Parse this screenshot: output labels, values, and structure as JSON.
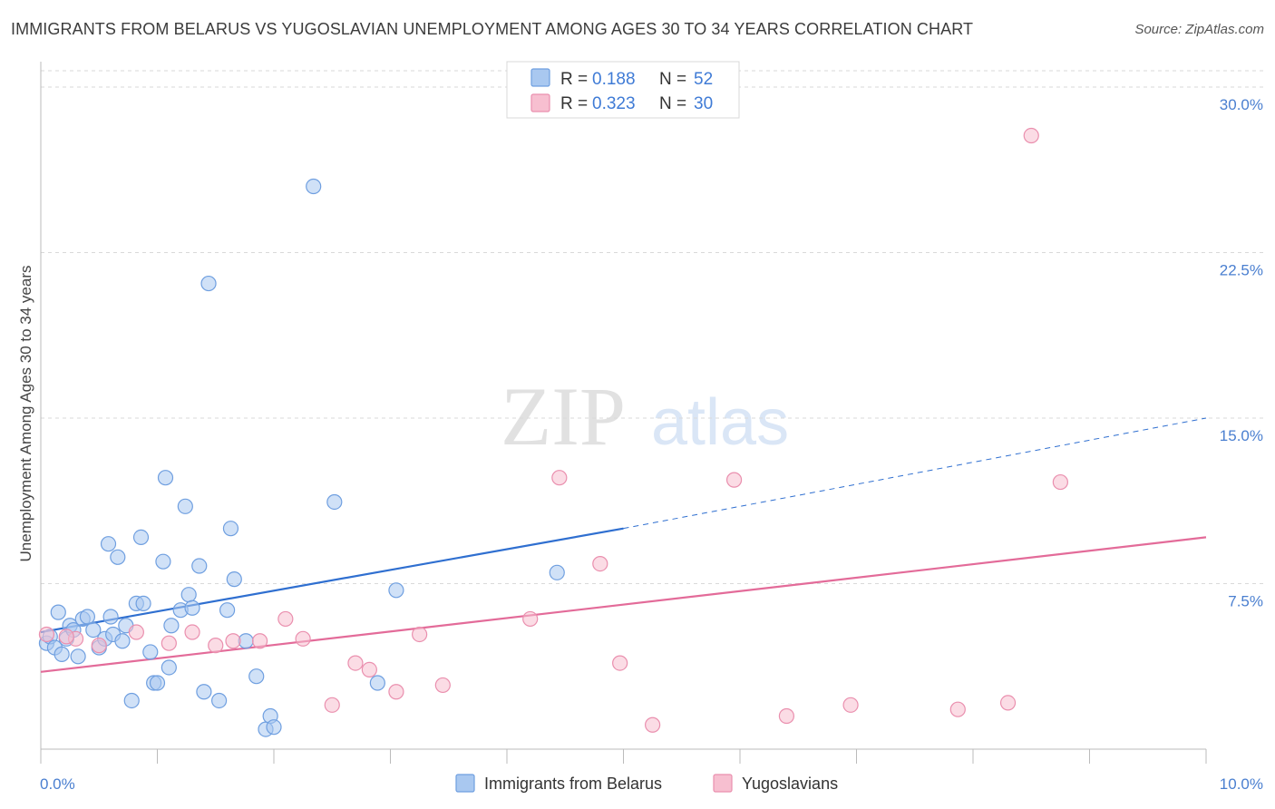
{
  "title": "IMMIGRANTS FROM BELARUS VS YUGOSLAVIAN UNEMPLOYMENT AMONG AGES 30 TO 34 YEARS CORRELATION CHART",
  "source": "Source: ZipAtlas.com",
  "watermark": {
    "zip": "ZIP",
    "atlas": "atlas"
  },
  "legend": {
    "r_label": "R =",
    "n_label": "N =",
    "rows": [
      {
        "r": "0.188",
        "n": "52"
      },
      {
        "r": "0.323",
        "n": "30"
      }
    ]
  },
  "colors": {
    "blue_fill": "#a9c8f0",
    "blue_stroke": "#6f9fe0",
    "blue_line": "#2f6fd0",
    "pink_fill": "#f7bfd0",
    "pink_stroke": "#ea8fae",
    "pink_line": "#e36b99",
    "grid": "#d9d9d9",
    "tick_text": "#4a7fd0"
  },
  "chart_data": {
    "type": "scatter",
    "title": "IMMIGRANTS FROM BELARUS VS YUGOSLAVIAN UNEMPLOYMENT AMONG AGES 30 TO 34 YEARS CORRELATION CHART",
    "xlabel": "",
    "ylabel": "Unemployment Among Ages 30 to 34 years",
    "xlim": [
      0,
      10
    ],
    "ylim": [
      0,
      30
    ],
    "x_tick_labels": [
      "0.0%",
      "10.0%"
    ],
    "y_ticks": [
      7.5,
      15,
      22.5,
      30
    ],
    "y_tick_labels": [
      "7.5%",
      "15.0%",
      "22.5%",
      "30.0%"
    ],
    "series": [
      {
        "name": "Immigrants from Belarus",
        "points": [
          [
            0.05,
            4.8
          ],
          [
            0.08,
            5.1
          ],
          [
            0.12,
            4.6
          ],
          [
            0.15,
            6.2
          ],
          [
            0.18,
            4.3
          ],
          [
            0.22,
            5.0
          ],
          [
            0.25,
            5.6
          ],
          [
            0.28,
            5.4
          ],
          [
            0.32,
            4.2
          ],
          [
            0.36,
            5.9
          ],
          [
            0.4,
            6.0
          ],
          [
            0.45,
            5.4
          ],
          [
            0.5,
            4.6
          ],
          [
            0.55,
            5.0
          ],
          [
            0.58,
            9.3
          ],
          [
            0.62,
            5.2
          ],
          [
            0.66,
            8.7
          ],
          [
            0.7,
            4.9
          ],
          [
            0.73,
            5.6
          ],
          [
            0.78,
            2.2
          ],
          [
            0.82,
            6.6
          ],
          [
            0.86,
            9.6
          ],
          [
            0.88,
            6.6
          ],
          [
            0.94,
            4.4
          ],
          [
            0.97,
            3.0
          ],
          [
            1.0,
            3.0
          ],
          [
            1.05,
            8.5
          ],
          [
            1.07,
            12.3
          ],
          [
            1.1,
            3.7
          ],
          [
            1.12,
            5.6
          ],
          [
            1.2,
            6.3
          ],
          [
            1.24,
            11.0
          ],
          [
            1.27,
            7.0
          ],
          [
            1.3,
            6.4
          ],
          [
            1.36,
            8.3
          ],
          [
            1.4,
            2.6
          ],
          [
            1.44,
            21.1
          ],
          [
            1.53,
            2.2
          ],
          [
            1.6,
            6.3
          ],
          [
            1.63,
            10.0
          ],
          [
            1.66,
            7.7
          ],
          [
            1.76,
            4.9
          ],
          [
            1.85,
            3.3
          ],
          [
            1.93,
            0.9
          ],
          [
            1.97,
            1.5
          ],
          [
            2.0,
            1.0
          ],
          [
            2.34,
            25.5
          ],
          [
            2.52,
            11.2
          ],
          [
            2.89,
            3.0
          ],
          [
            3.05,
            7.2
          ],
          [
            4.43,
            8.0
          ],
          [
            0.6,
            6.0
          ]
        ],
        "trend": {
          "x": [
            0,
            5.0
          ],
          "y": [
            5.3,
            10.0
          ],
          "dashed_to": [
            10,
            15.0
          ]
        }
      },
      {
        "name": "Yugoslavians",
        "points": [
          [
            0.05,
            5.2
          ],
          [
            0.3,
            5.0
          ],
          [
            0.5,
            4.7
          ],
          [
            0.82,
            5.3
          ],
          [
            1.1,
            4.8
          ],
          [
            1.3,
            5.3
          ],
          [
            1.5,
            4.7
          ],
          [
            1.65,
            4.9
          ],
          [
            1.88,
            4.9
          ],
          [
            2.1,
            5.9
          ],
          [
            2.25,
            5.0
          ],
          [
            2.5,
            2.0
          ],
          [
            2.7,
            3.9
          ],
          [
            2.82,
            3.6
          ],
          [
            3.05,
            2.6
          ],
          [
            3.25,
            5.2
          ],
          [
            3.45,
            2.9
          ],
          [
            4.2,
            5.9
          ],
          [
            4.45,
            12.3
          ],
          [
            4.8,
            8.4
          ],
          [
            4.97,
            3.9
          ],
          [
            5.25,
            1.1
          ],
          [
            5.95,
            12.2
          ],
          [
            6.4,
            1.5
          ],
          [
            6.95,
            2.0
          ],
          [
            7.87,
            1.8
          ],
          [
            8.3,
            2.1
          ],
          [
            8.5,
            27.8
          ],
          [
            8.75,
            12.1
          ],
          [
            0.22,
            5.1
          ]
        ],
        "trend": {
          "x": [
            0,
            10
          ],
          "y": [
            3.5,
            9.6
          ]
        }
      }
    ]
  },
  "bottom_legend": [
    "Immigrants from Belarus",
    "Yugoslavians"
  ]
}
